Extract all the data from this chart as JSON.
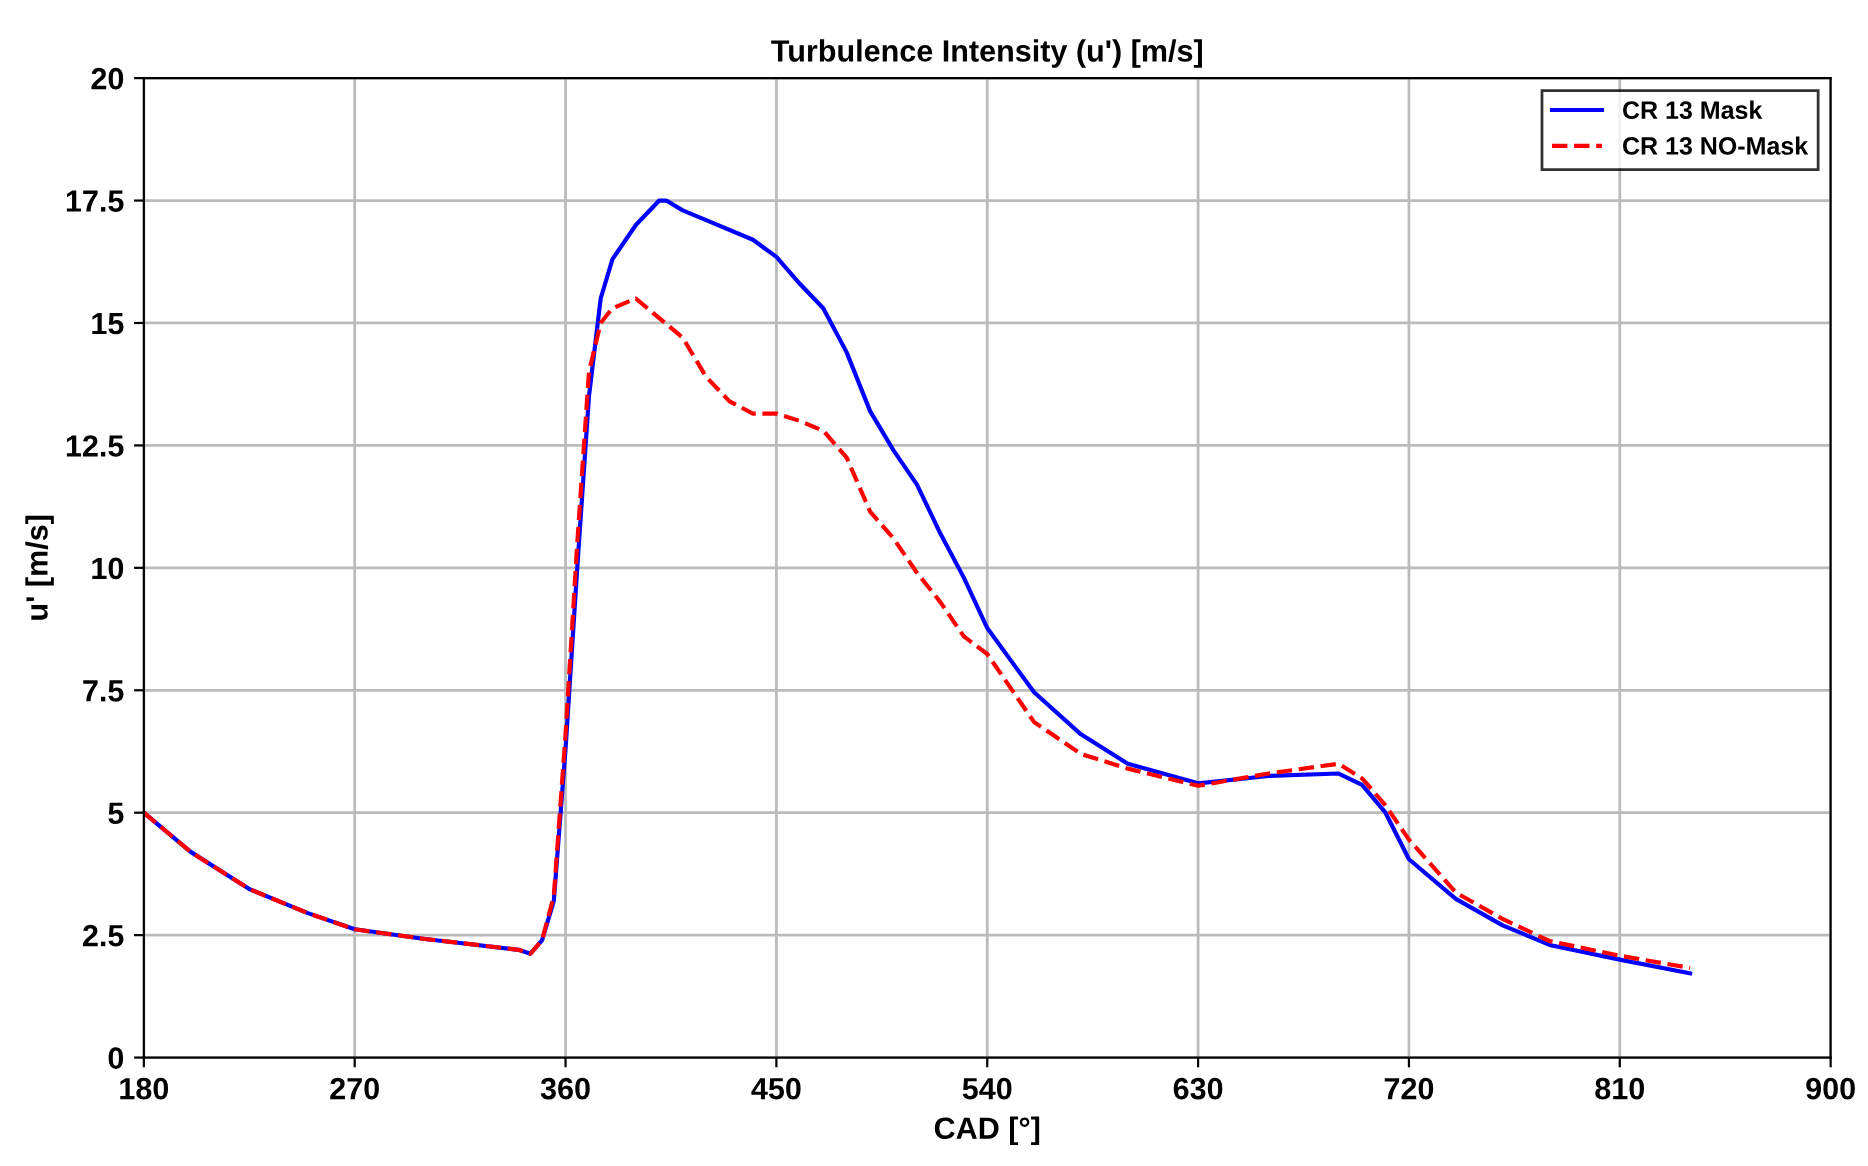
{
  "chart_data": {
    "type": "line",
    "title": "Turbulence Intensity (u') [m/s]",
    "xlabel": "CAD [°]",
    "ylabel": "u' [m/s]",
    "xlim": [
      180,
      900
    ],
    "xticks": [
      180,
      270,
      360,
      450,
      540,
      630,
      720,
      810,
      900
    ],
    "ylim": [
      0,
      20
    ],
    "yticks": [
      0,
      2.5,
      5,
      7.5,
      10,
      12.5,
      15,
      17.5,
      20
    ],
    "grid": true,
    "legend": "top right",
    "series": [
      {
        "name": "CR 13 Mask",
        "color": "#0000ff",
        "line_style": "solid",
        "x": [
          180,
          200,
          225,
          250,
          270,
          300,
          315,
          340,
          345,
          350,
          355,
          360,
          365,
          370,
          375,
          380,
          390,
          400,
          403,
          410,
          420,
          440,
          450,
          460,
          470,
          480,
          490,
          500,
          510,
          520,
          530,
          540,
          560,
          580,
          600,
          630,
          660,
          690,
          700,
          710,
          720,
          740,
          760,
          780,
          810,
          840
        ],
        "values": [
          5.0,
          4.2,
          3.44,
          2.95,
          2.62,
          2.42,
          2.34,
          2.2,
          2.12,
          2.4,
          3.2,
          6.3,
          10.0,
          13.5,
          15.5,
          16.3,
          17.0,
          17.5,
          17.5,
          17.3,
          17.1,
          16.7,
          16.35,
          15.8,
          15.3,
          14.4,
          13.2,
          12.4,
          11.7,
          10.7,
          9.8,
          8.77,
          7.46,
          6.6,
          6.0,
          5.6,
          5.75,
          5.8,
          5.57,
          5.0,
          4.05,
          3.24,
          2.7,
          2.3,
          2.0,
          1.72
        ]
      },
      {
        "name": "CR 13 NO-Mask",
        "color": "#ff0000",
        "line_style": "dashed",
        "x": [
          180,
          200,
          225,
          250,
          270,
          300,
          315,
          340,
          345,
          350,
          355,
          360,
          365,
          370,
          375,
          380,
          390,
          400,
          410,
          420,
          430,
          440,
          450,
          460,
          470,
          480,
          490,
          500,
          510,
          520,
          530,
          540,
          560,
          580,
          600,
          630,
          660,
          690,
          700,
          710,
          720,
          740,
          760,
          780,
          810,
          840
        ],
        "values": [
          5.0,
          4.2,
          3.44,
          2.95,
          2.62,
          2.42,
          2.34,
          2.2,
          2.12,
          2.4,
          3.3,
          6.6,
          10.5,
          14.0,
          15.0,
          15.3,
          15.5,
          15.1,
          14.7,
          13.9,
          13.4,
          13.15,
          13.15,
          13.0,
          12.8,
          12.25,
          11.15,
          10.6,
          9.9,
          9.3,
          8.6,
          8.24,
          6.85,
          6.2,
          5.9,
          5.55,
          5.8,
          6.0,
          5.7,
          5.15,
          4.45,
          3.37,
          2.83,
          2.38,
          2.08,
          1.83
        ]
      }
    ]
  }
}
